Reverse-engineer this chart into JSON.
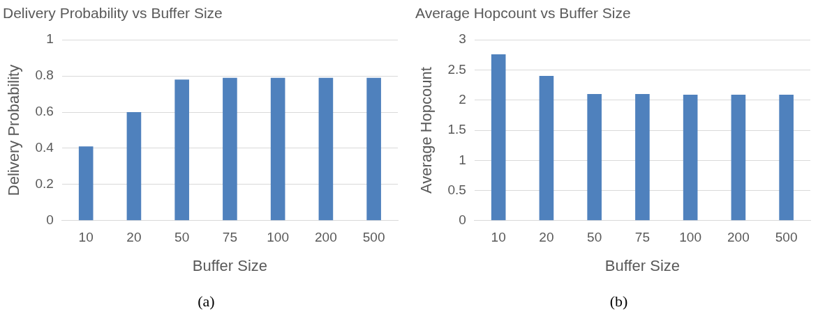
{
  "chart_data": [
    {
      "type": "bar",
      "title": "Delivery Probability vs Buffer Size",
      "xlabel": "Buffer Size",
      "ylabel": "Delivery Probability",
      "categories": [
        "10",
        "20",
        "50",
        "75",
        "100",
        "200",
        "500"
      ],
      "values": [
        0.41,
        0.6,
        0.78,
        0.79,
        0.79,
        0.79,
        0.79
      ],
      "color": "#4f81bd",
      "ylim": [
        0,
        1
      ],
      "yticks": [
        0,
        0.2,
        0.4,
        0.6,
        0.8,
        1
      ],
      "grid": "y",
      "legend": false,
      "annotations": [
        "(a)"
      ]
    },
    {
      "type": "bar",
      "title": "Average Hopcount vs Buffer Size",
      "xlabel": "Buffer Size",
      "ylabel": "Average Hopcount",
      "categories": [
        "10",
        "20",
        "50",
        "75",
        "100",
        "200",
        "500"
      ],
      "values": [
        2.76,
        2.4,
        2.1,
        2.1,
        2.09,
        2.09,
        2.09
      ],
      "color": "#4f81bd",
      "ylim": [
        0,
        3
      ],
      "yticks": [
        0,
        0.5,
        1,
        1.5,
        2,
        2.5,
        3
      ],
      "grid": "y",
      "legend": false,
      "annotations": [
        "(b)"
      ]
    }
  ]
}
